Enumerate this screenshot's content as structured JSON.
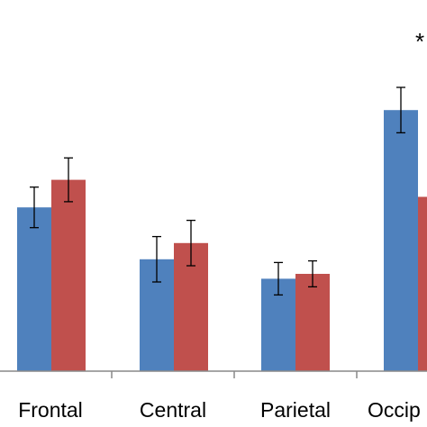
{
  "chart_data": {
    "type": "bar",
    "categories": [
      "Frontal",
      "Central",
      "Parietal",
      "Occipital"
    ],
    "visible_category_labels": [
      "Frontal",
      "Central",
      "Parietal",
      "Occip"
    ],
    "series": [
      {
        "values": [
          202,
          138,
          114,
          322
        ],
        "errors": [
          25,
          28,
          20,
          28
        ],
        "color": "#4f81bd"
      },
      {
        "values": [
          236,
          158,
          120,
          215
        ],
        "errors": [
          27,
          28,
          16,
          0
        ],
        "color": "#c0504d"
      }
    ],
    "ylim": [
      0,
      400
    ],
    "annotations": [
      {
        "text": "*",
        "category": "Occipital"
      }
    ],
    "grid": false,
    "legend": "none"
  }
}
